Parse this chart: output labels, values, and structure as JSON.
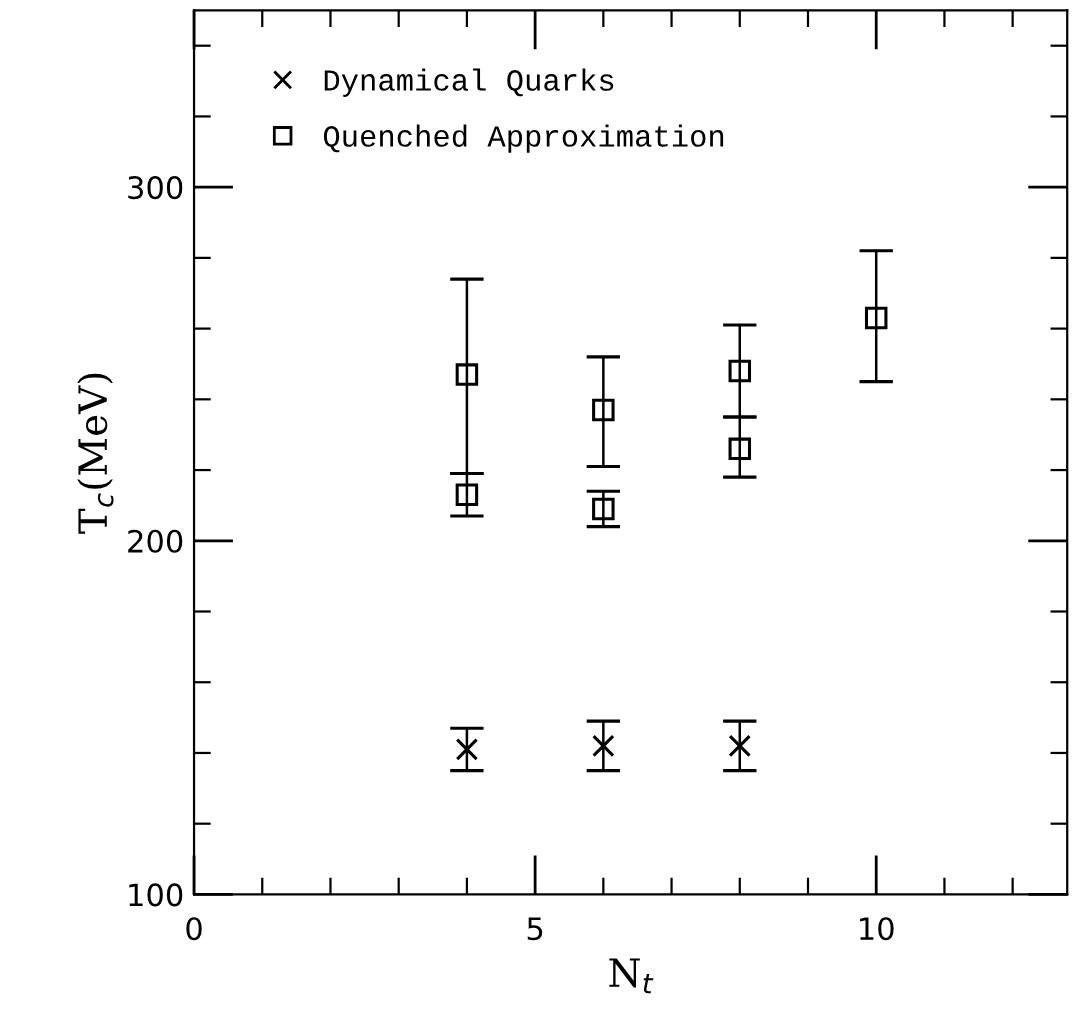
{
  "chart_data": {
    "type": "scatter",
    "xlabel": "N$_{t}$",
    "ylabel": "T$_{c}$(MeV)",
    "xlim": [
      0,
      12.8
    ],
    "ylim": [
      100,
      350
    ],
    "xticks": [
      {
        "value": 1,
        "label": null
      },
      {
        "value": 2,
        "label": null
      },
      {
        "value": 3,
        "label": null
      },
      {
        "value": 4,
        "label": null
      },
      0,
      5,
      {
        "value": 6,
        "label": null
      },
      {
        "value": 7,
        "label": null
      },
      {
        "value": 8,
        "label": null
      },
      {
        "value": 9,
        "label": null
      },
      10,
      {
        "value": 11,
        "label": null
      },
      {
        "value": 12,
        "label": null
      }
    ],
    "yticks": [
      100,
      {
        "value": 120,
        "label": null
      },
      {
        "value": 140,
        "label": null
      },
      {
        "value": 160,
        "label": null
      },
      {
        "value": 180,
        "label": null
      },
      200,
      {
        "value": 220,
        "label": null
      },
      {
        "value": 240,
        "label": null
      },
      {
        "value": 260,
        "label": null
      },
      {
        "value": 280,
        "label": null
      },
      300,
      {
        "value": 320,
        "label": null
      },
      {
        "value": 340,
        "label": null
      }
    ],
    "legend": "top left",
    "grid": false,
    "series": [
      {
        "name": "Dynamical Quarks",
        "color": "#000000",
        "marker": "cross",
        "x": [
          4,
          6,
          8
        ],
        "values": [
          141,
          142,
          142
        ],
        "errors": [
          [
            135,
            147
          ],
          [
            135,
            149
          ],
          [
            135,
            149
          ]
        ]
      },
      {
        "name": "Quenched Approximation",
        "color": "#000000",
        "marker": "square",
        "x": [
          4,
          4,
          6,
          6,
          8,
          8,
          10
        ],
        "values": [
          247,
          213,
          237,
          209,
          248,
          226,
          263
        ],
        "errors": [
          [
            219,
            274
          ],
          [
            207,
            219
          ],
          [
            221,
            252
          ],
          [
            204,
            214
          ],
          [
            235,
            261
          ],
          [
            218,
            235
          ],
          [
            245,
            282
          ]
        ]
      }
    ]
  }
}
